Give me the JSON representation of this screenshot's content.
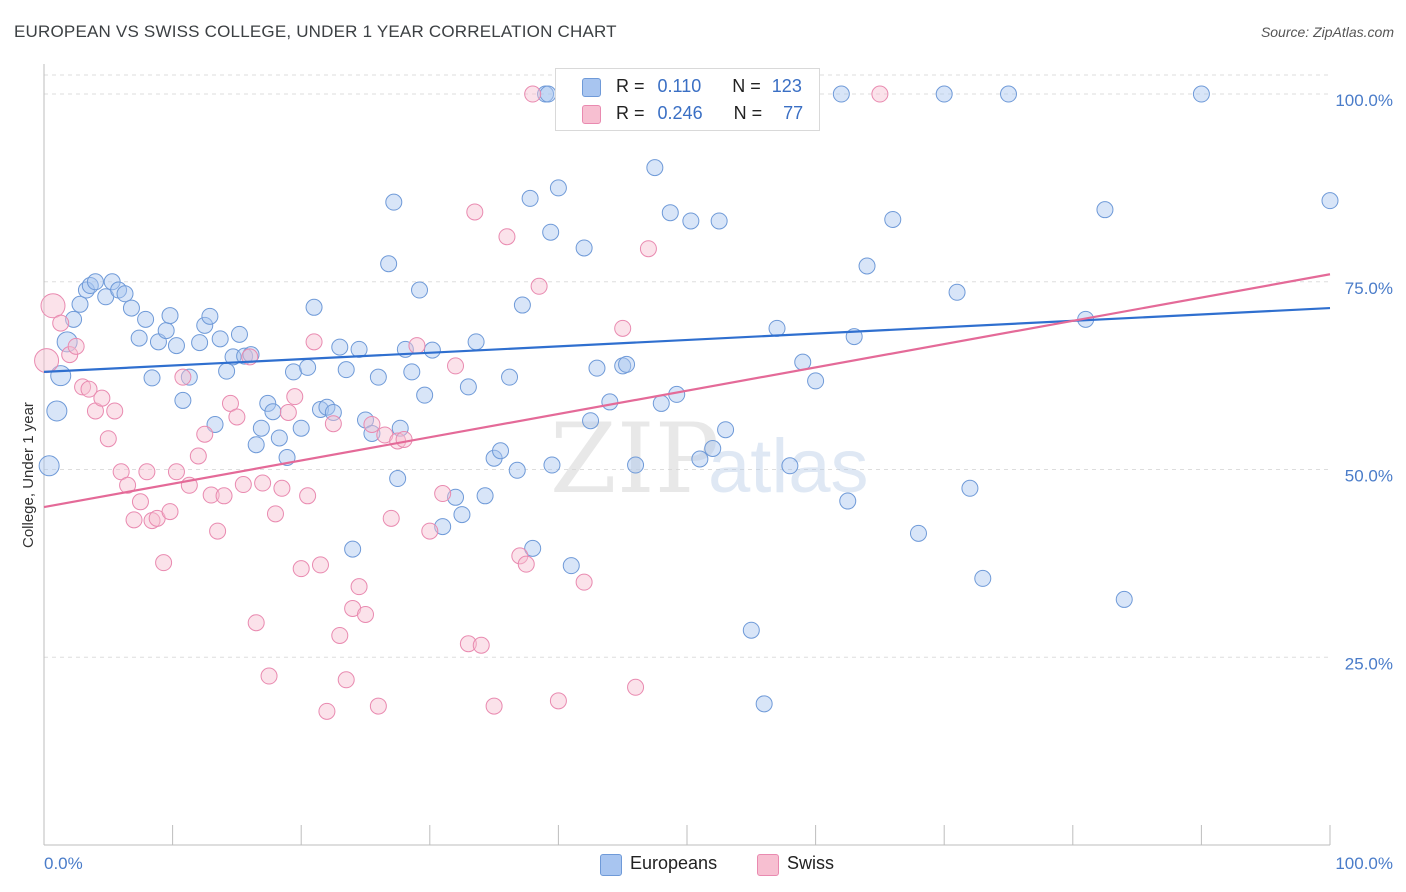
{
  "title": "EUROPEAN VS SWISS COLLEGE, UNDER 1 YEAR CORRELATION CHART",
  "source": "Source: ZipAtlas.com",
  "watermark": {
    "part1": "ZIP",
    "part2": "atlas"
  },
  "legend": {
    "rows": [
      {
        "r_label": "R =",
        "r_value": "0.110",
        "n_label": "N =",
        "n_value": "123",
        "color": "#a8c5f0",
        "border": "#6f9ad8"
      },
      {
        "r_label": "R =",
        "r_value": "0.246",
        "n_label": "N =",
        "n_value": "77",
        "color": "#f7bfd1",
        "border": "#e98ab0"
      }
    ]
  },
  "bottom_legend": [
    {
      "label": "Europeans",
      "color": "#a8c5f0",
      "border": "#6f9ad8"
    },
    {
      "label": "Swiss",
      "color": "#f7bfd1",
      "border": "#e98ab0"
    }
  ],
  "chart_data": {
    "type": "scatter",
    "title": "EUROPEAN VS SWISS COLLEGE, UNDER 1 YEAR CORRELATION CHART",
    "xlabel": "",
    "ylabel": "College, Under 1 year",
    "xlim": [
      0,
      100
    ],
    "ylim": [
      0,
      104
    ],
    "x_tick_labels": [
      "0.0%",
      "100.0%"
    ],
    "y_ticks": [
      25,
      50,
      75,
      100
    ],
    "y_tick_labels": [
      "25.0%",
      "50.0%",
      "75.0%",
      "100.0%"
    ],
    "grid": true,
    "legend_position": "top-center",
    "colors": {
      "europeans_fill": "#a8c5f0",
      "europeans_line": "#2f6fcf",
      "swiss_fill": "#f7bfd1",
      "swiss_line": "#e46a98"
    },
    "series": [
      {
        "name": "Europeans",
        "trend": {
          "x": [
            0,
            100
          ],
          "y": [
            63.0,
            71.5
          ]
        },
        "points": [
          [
            0.4,
            50.5
          ],
          [
            1.0,
            57.8
          ],
          [
            1.3,
            62.5
          ],
          [
            1.8,
            67
          ],
          [
            2.3,
            70
          ],
          [
            2.8,
            72
          ],
          [
            3.3,
            73.9
          ],
          [
            3.6,
            74.5
          ],
          [
            4.0,
            75
          ],
          [
            4.8,
            73
          ],
          [
            5.3,
            75
          ],
          [
            5.8,
            73.9
          ],
          [
            6.3,
            73.4
          ],
          [
            6.8,
            71.5
          ],
          [
            7.4,
            67.5
          ],
          [
            7.9,
            70
          ],
          [
            8.4,
            62.2
          ],
          [
            8.9,
            67
          ],
          [
            9.5,
            68.5
          ],
          [
            9.8,
            70.5
          ],
          [
            10.3,
            66.5
          ],
          [
            10.8,
            59.2
          ],
          [
            11.3,
            62.3
          ],
          [
            12.1,
            66.9
          ],
          [
            12.5,
            69.2
          ],
          [
            12.9,
            70.4
          ],
          [
            13.3,
            56
          ],
          [
            13.7,
            67.4
          ],
          [
            14.2,
            63.1
          ],
          [
            14.7,
            65
          ],
          [
            15.2,
            68
          ],
          [
            15.6,
            65.1
          ],
          [
            16.1,
            65.3
          ],
          [
            16.5,
            53.3
          ],
          [
            16.9,
            55.5
          ],
          [
            17.4,
            58.8
          ],
          [
            17.8,
            57.7
          ],
          [
            18.3,
            54.2
          ],
          [
            18.9,
            51.6
          ],
          [
            19.4,
            63
          ],
          [
            20.0,
            55.5
          ],
          [
            20.5,
            63.6
          ],
          [
            21.0,
            71.6
          ],
          [
            21.5,
            58
          ],
          [
            22.0,
            58.3
          ],
          [
            22.5,
            57.6
          ],
          [
            23.0,
            66.3
          ],
          [
            23.5,
            63.3
          ],
          [
            24.0,
            39.4
          ],
          [
            24.5,
            66
          ],
          [
            25.0,
            56.6
          ],
          [
            25.5,
            54.8
          ],
          [
            26.0,
            62.3
          ],
          [
            26.8,
            77.4
          ],
          [
            27.2,
            85.6
          ],
          [
            27.5,
            48.8
          ],
          [
            27.7,
            55.5
          ],
          [
            28.1,
            66
          ],
          [
            28.6,
            63
          ],
          [
            29.2,
            73.9
          ],
          [
            29.6,
            59.9
          ],
          [
            30.2,
            65.9
          ],
          [
            31.0,
            42.4
          ],
          [
            32.0,
            46.3
          ],
          [
            32.5,
            44
          ],
          [
            33.0,
            61
          ],
          [
            33.6,
            67
          ],
          [
            34.3,
            46.5
          ],
          [
            35.0,
            51.5
          ],
          [
            35.5,
            52.5
          ],
          [
            36.2,
            62.3
          ],
          [
            36.8,
            49.9
          ],
          [
            37.2,
            71.9
          ],
          [
            37.8,
            86.1
          ],
          [
            38.0,
            39.5
          ],
          [
            39.0,
            100
          ],
          [
            39.2,
            100
          ],
          [
            39.5,
            50.6
          ],
          [
            39.4,
            81.6
          ],
          [
            40.0,
            87.5
          ],
          [
            41.0,
            37.2
          ],
          [
            42.0,
            79.5
          ],
          [
            42.5,
            56.5
          ],
          [
            43.0,
            63.5
          ],
          [
            44.0,
            59
          ],
          [
            45.0,
            63.8
          ],
          [
            45.3,
            64
          ],
          [
            46.0,
            50.6
          ],
          [
            47.5,
            90.2
          ],
          [
            48.0,
            58.8
          ],
          [
            48.7,
            84.2
          ],
          [
            49.2,
            60
          ],
          [
            50.3,
            83.1
          ],
          [
            51.0,
            51.4
          ],
          [
            52.0,
            52.8
          ],
          [
            52.5,
            83.1
          ],
          [
            53.0,
            55.3
          ],
          [
            55.0,
            28.6
          ],
          [
            56.0,
            18.8
          ],
          [
            57.0,
            68.8
          ],
          [
            58.0,
            50.5
          ],
          [
            59.0,
            64.3
          ],
          [
            60.0,
            61.8
          ],
          [
            62.0,
            100
          ],
          [
            62.5,
            45.8
          ],
          [
            63.0,
            67.7
          ],
          [
            64.0,
            77.1
          ],
          [
            66.0,
            83.3
          ],
          [
            68.0,
            41.5
          ],
          [
            70.0,
            100
          ],
          [
            71.0,
            73.6
          ],
          [
            72.0,
            47.5
          ],
          [
            73.0,
            35.5
          ],
          [
            75.0,
            100
          ],
          [
            81.0,
            70
          ],
          [
            82.5,
            84.6
          ],
          [
            84.0,
            32.7
          ],
          [
            90.0,
            100
          ],
          [
            100.0,
            85.8
          ]
        ]
      },
      {
        "name": "Swiss",
        "trend": {
          "x": [
            0,
            100
          ],
          "y": [
            45.0,
            76.0
          ]
        },
        "points": [
          [
            0.2,
            64.5
          ],
          [
            0.7,
            71.8
          ],
          [
            1.3,
            69.5
          ],
          [
            2.0,
            65.3
          ],
          [
            2.5,
            66.4
          ],
          [
            3.0,
            61
          ],
          [
            3.5,
            60.7
          ],
          [
            4.0,
            57.8
          ],
          [
            4.5,
            59.5
          ],
          [
            5.0,
            54.1
          ],
          [
            5.5,
            57.8
          ],
          [
            6.0,
            49.7
          ],
          [
            6.5,
            47.9
          ],
          [
            7.0,
            43.3
          ],
          [
            7.5,
            45.7
          ],
          [
            8.0,
            49.7
          ],
          [
            8.4,
            43.2
          ],
          [
            8.8,
            43.5
          ],
          [
            9.3,
            37.6
          ],
          [
            9.8,
            44.4
          ],
          [
            10.3,
            49.7
          ],
          [
            10.8,
            62.3
          ],
          [
            11.3,
            47.9
          ],
          [
            12.0,
            51.8
          ],
          [
            12.5,
            54.7
          ],
          [
            13.0,
            46.6
          ],
          [
            13.5,
            41.8
          ],
          [
            14.0,
            46.5
          ],
          [
            14.5,
            58.8
          ],
          [
            15.0,
            57
          ],
          [
            15.5,
            48
          ],
          [
            16.0,
            65
          ],
          [
            16.5,
            29.6
          ],
          [
            17.0,
            48.2
          ],
          [
            17.5,
            22.5
          ],
          [
            18.0,
            44.1
          ],
          [
            18.5,
            47.5
          ],
          [
            19.0,
            57.6
          ],
          [
            19.5,
            59.7
          ],
          [
            20.0,
            36.8
          ],
          [
            20.5,
            46.5
          ],
          [
            21.0,
            67
          ],
          [
            21.5,
            37.3
          ],
          [
            22.0,
            17.8
          ],
          [
            22.5,
            56.1
          ],
          [
            23.0,
            27.9
          ],
          [
            23.5,
            22
          ],
          [
            24.0,
            31.5
          ],
          [
            24.5,
            34.4
          ],
          [
            25.0,
            30.7
          ],
          [
            25.5,
            56
          ],
          [
            26.0,
            18.5
          ],
          [
            26.5,
            54.6
          ],
          [
            27.0,
            43.5
          ],
          [
            27.5,
            53.8
          ],
          [
            28.0,
            54
          ],
          [
            29.0,
            66.5
          ],
          [
            30.0,
            41.8
          ],
          [
            31.0,
            46.8
          ],
          [
            32.0,
            63.8
          ],
          [
            33.0,
            26.8
          ],
          [
            33.5,
            84.3
          ],
          [
            34.0,
            26.6
          ],
          [
            35.0,
            18.5
          ],
          [
            36.0,
            81
          ],
          [
            37.0,
            38.5
          ],
          [
            37.5,
            37.4
          ],
          [
            38.0,
            100
          ],
          [
            38.5,
            74.4
          ],
          [
            40.0,
            19.2
          ],
          [
            42.0,
            35
          ],
          [
            45.0,
            68.8
          ],
          [
            46.0,
            21
          ],
          [
            47.0,
            79.4
          ],
          [
            65.0,
            100
          ]
        ]
      }
    ]
  }
}
